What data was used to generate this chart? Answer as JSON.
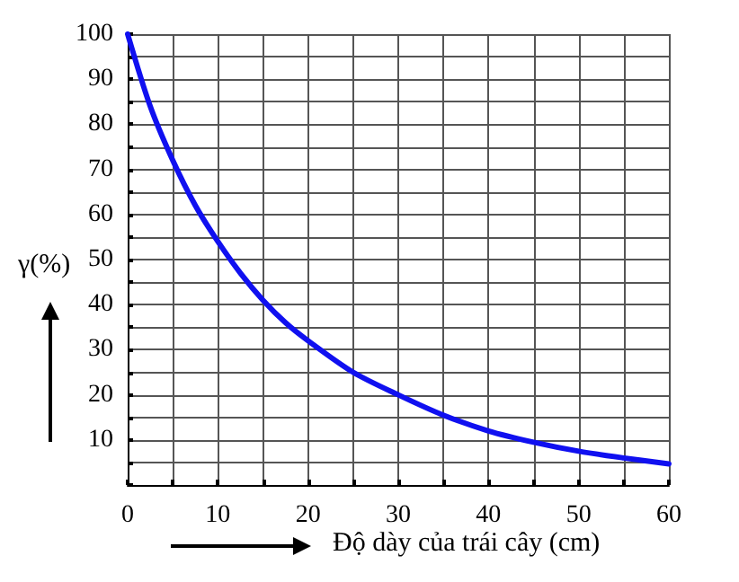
{
  "chart_data": {
    "type": "line",
    "xlabel": "Độ dày của trái cây (cm)",
    "ylabel": "γ(%)",
    "x": [
      0,
      2.5,
      5,
      7.5,
      10,
      12.5,
      15,
      17.5,
      20,
      25,
      30,
      35,
      40,
      45,
      50,
      55,
      60
    ],
    "series": [
      {
        "color": "#1010f0",
        "values": [
          100,
          84,
          72,
          62,
          54,
          47,
          41,
          36,
          32,
          25,
          20,
          15.5,
          12,
          9.5,
          7.5,
          6,
          4.7
        ]
      }
    ],
    "xlim": [
      0,
      60
    ],
    "ylim": [
      0,
      100
    ],
    "xticks": [
      0,
      {
        "value": 5,
        "label": null
      },
      10,
      {
        "value": 15,
        "label": null
      },
      20,
      {
        "value": 25,
        "label": null
      },
      30,
      {
        "value": 35,
        "label": null
      },
      40,
      {
        "value": 45,
        "label": null
      },
      50,
      {
        "value": 55,
        "label": null
      },
      60
    ],
    "yticks": [
      {
        "value": 0,
        "label": null
      },
      {
        "value": 5,
        "label": null
      },
      10,
      {
        "value": 15,
        "label": null
      },
      20,
      {
        "value": 25,
        "label": null
      },
      30,
      {
        "value": 35,
        "label": null
      },
      40,
      {
        "value": 45,
        "label": null
      },
      50,
      {
        "value": 55,
        "label": null
      },
      60,
      {
        "value": 65,
        "label": null
      },
      70,
      {
        "value": 75,
        "label": null
      },
      80,
      {
        "value": 85,
        "label": null
      },
      90,
      {
        "value": 95,
        "label": null
      },
      100
    ],
    "grid": true,
    "marker": "none",
    "line_style": "solid"
  }
}
